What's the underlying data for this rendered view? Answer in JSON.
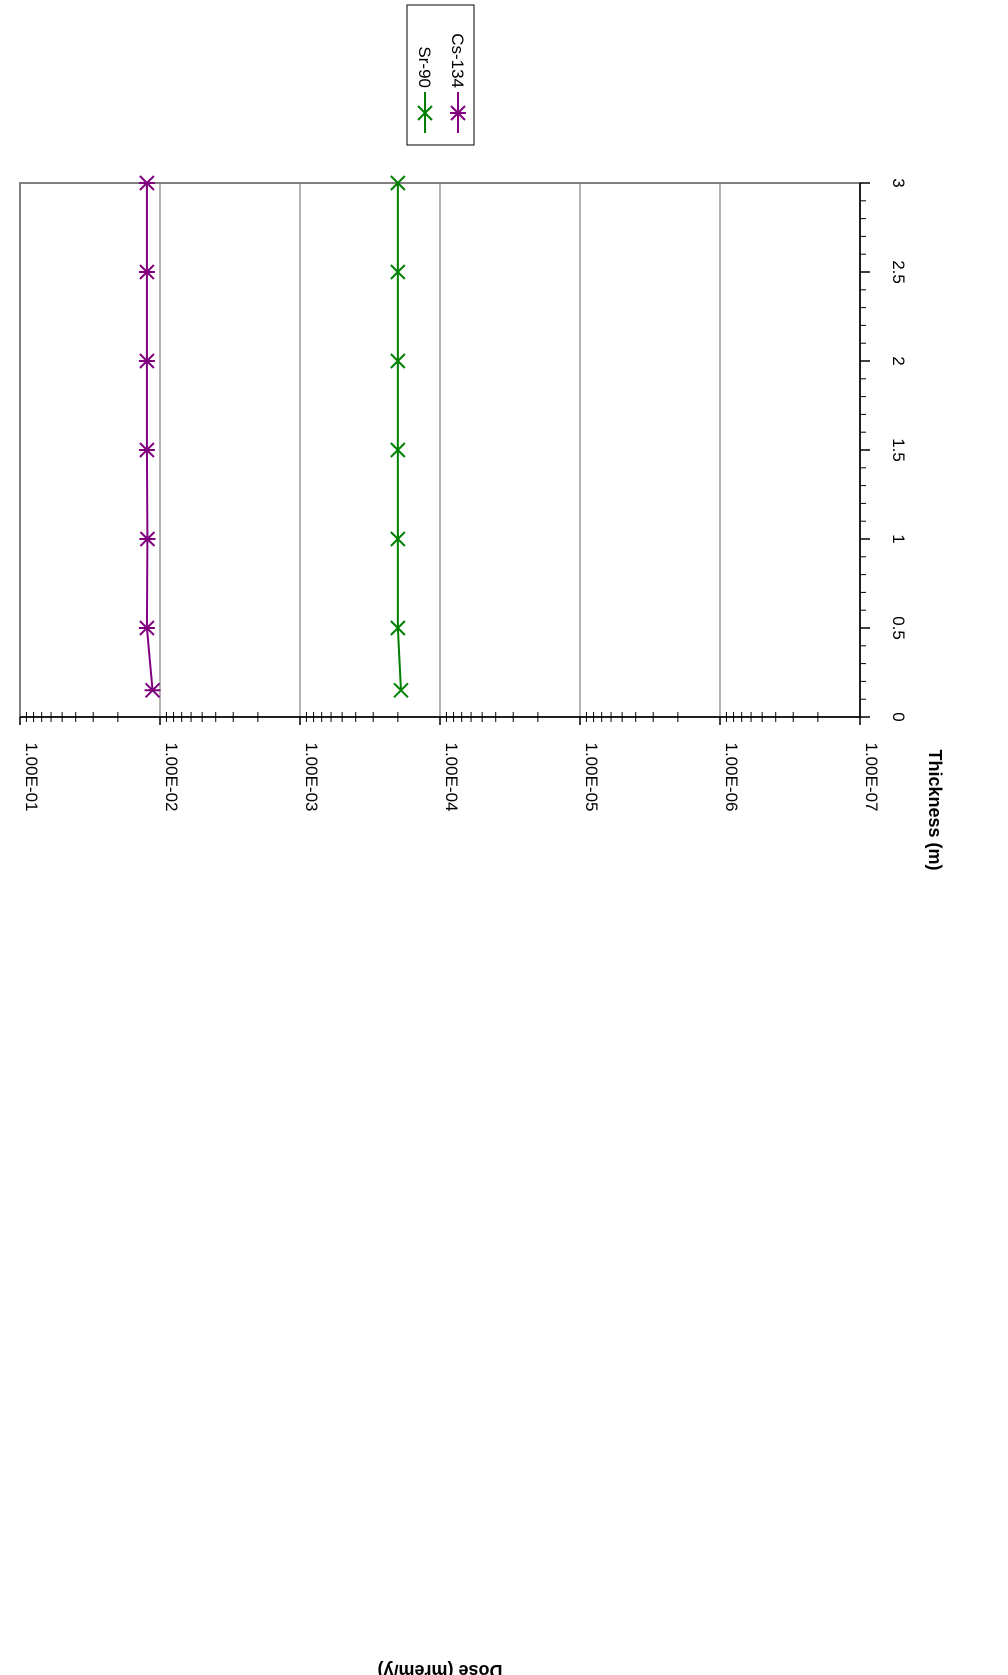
{
  "chart_data": {
    "type": "line",
    "title": "",
    "xlabel": "Thickness (m)",
    "ylabel": "Dose (mrem/y)",
    "xlim": [
      0,
      3
    ],
    "ylim": [
      1e-07,
      0.1
    ],
    "y_scale": "log",
    "x_ticks": [
      "0",
      "0.5",
      "1",
      "1.5",
      "2",
      "2.5",
      "3"
    ],
    "y_ticks": [
      "1.00E-07",
      "1.00E-06",
      "1.00E-05",
      "1.00E-04",
      "1.00E-03",
      "1.00E-02",
      "1.00E-01"
    ],
    "grid": true,
    "legend_position": "top-right",
    "orientation": "rotated-90",
    "series": [
      {
        "name": "Sr-90",
        "color": "#008000",
        "marker": "x",
        "x": [
          0.15,
          0.5,
          1,
          1.5,
          2,
          2.5,
          3
        ],
        "y": [
          0.00019,
          0.0002,
          0.0002,
          0.0002,
          0.0002,
          0.0002,
          0.0002
        ]
      },
      {
        "name": "Cs-134",
        "color": "#800080",
        "marker": "asterisk",
        "x": [
          0.15,
          0.5,
          1,
          1.5,
          2,
          2.5,
          3
        ],
        "y": [
          0.0113,
          0.0124,
          0.0123,
          0.0124,
          0.0124,
          0.0124,
          0.0124
        ]
      }
    ]
  }
}
